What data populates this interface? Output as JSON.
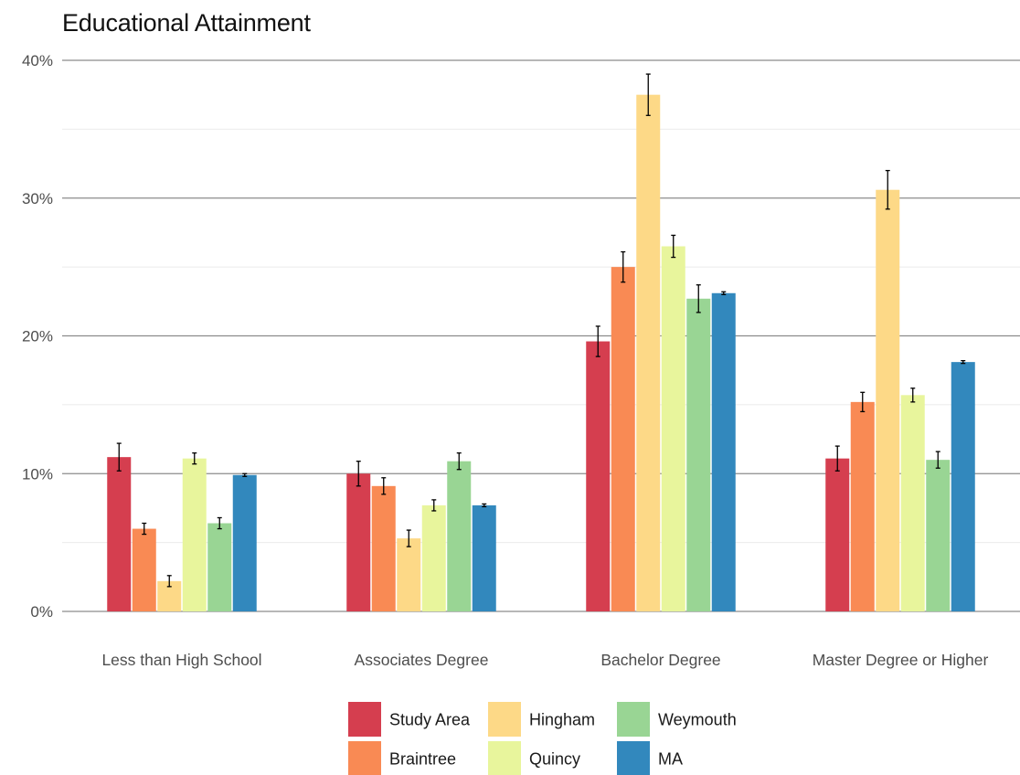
{
  "chart_data": {
    "type": "bar",
    "title": "Educational Attainment",
    "xlabel": "",
    "ylabel": "",
    "categories": [
      "Less than High School",
      "Associates Degree",
      "Bachelor Degree",
      "Master Degree or Higher"
    ],
    "ylim": [
      0,
      0.4
    ],
    "yticks": [
      0,
      0.1,
      0.2,
      0.3,
      0.4
    ],
    "ytick_labels": [
      "0%",
      "10%",
      "20%",
      "30%",
      "40%"
    ],
    "grid": true,
    "legend_position": "bottom",
    "series": [
      {
        "name": "Study Area",
        "color": "#d53e4f",
        "values": [
          0.112,
          0.1,
          0.196,
          0.111
        ],
        "errors": [
          0.01,
          0.009,
          0.011,
          0.009
        ]
      },
      {
        "name": "Braintree",
        "color": "#f98a54",
        "values": [
          0.06,
          0.091,
          0.25,
          0.152
        ],
        "errors": [
          0.004,
          0.006,
          0.011,
          0.007
        ]
      },
      {
        "name": "Hingham",
        "color": "#fdd987",
        "values": [
          0.022,
          0.053,
          0.375,
          0.306
        ],
        "errors": [
          0.004,
          0.006,
          0.015,
          0.014
        ]
      },
      {
        "name": "Quincy",
        "color": "#e8f59c",
        "values": [
          0.111,
          0.077,
          0.265,
          0.157
        ],
        "errors": [
          0.004,
          0.004,
          0.008,
          0.005
        ]
      },
      {
        "name": "Weymouth",
        "color": "#99d594",
        "values": [
          0.064,
          0.109,
          0.227,
          0.11
        ],
        "errors": [
          0.004,
          0.006,
          0.01,
          0.006
        ]
      },
      {
        "name": "MA",
        "color": "#3288bd",
        "values": [
          0.099,
          0.077,
          0.231,
          0.181
        ],
        "errors": [
          0.001,
          0.001,
          0.001,
          0.001
        ]
      }
    ],
    "legend_layout": [
      [
        "Study Area",
        "Hingham",
        "Weymouth"
      ],
      [
        "Braintree",
        "Quincy",
        "MA"
      ]
    ]
  }
}
